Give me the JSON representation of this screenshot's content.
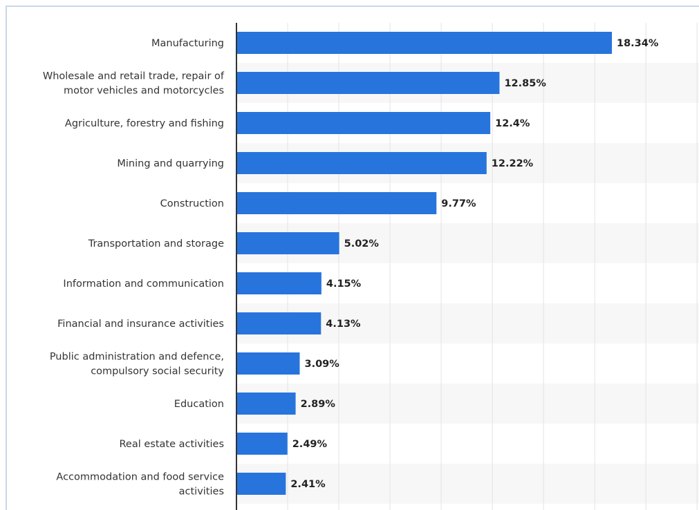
{
  "chart_data": {
    "type": "bar",
    "orientation": "horizontal",
    "categories": [
      [
        "Manufacturing"
      ],
      [
        "Wholesale and retail trade, repair of",
        "motor vehicles and motorcycles"
      ],
      [
        "Agriculture, forestry and fishing"
      ],
      [
        "Mining and quarrying"
      ],
      [
        "Construction"
      ],
      [
        "Transportation and storage"
      ],
      [
        "Information and communication"
      ],
      [
        "Financial and insurance activities"
      ],
      [
        "Public administration and defence,",
        "compulsory social security"
      ],
      [
        "Education"
      ],
      [
        "Real estate activities"
      ],
      [
        "Accommodation and food service",
        "activities"
      ]
    ],
    "values": [
      18.34,
      12.85,
      12.4,
      12.22,
      9.77,
      5.02,
      4.15,
      4.13,
      3.09,
      2.89,
      2.49,
      2.41
    ],
    "value_labels": [
      "18.34%",
      "12.85%",
      "12.4%",
      "12.22%",
      "9.77%",
      "5.02%",
      "4.15%",
      "4.13%",
      "3.09%",
      "2.89%",
      "2.49%",
      "2.41%"
    ],
    "xlim": [
      0,
      22.5
    ],
    "x_gridline_step": 2.5,
    "grid": true,
    "bar_color": "#2774dd",
    "band_color": "#f7f7f7",
    "gridline_color": "#e3e3e3",
    "axis_color": "#333333"
  }
}
